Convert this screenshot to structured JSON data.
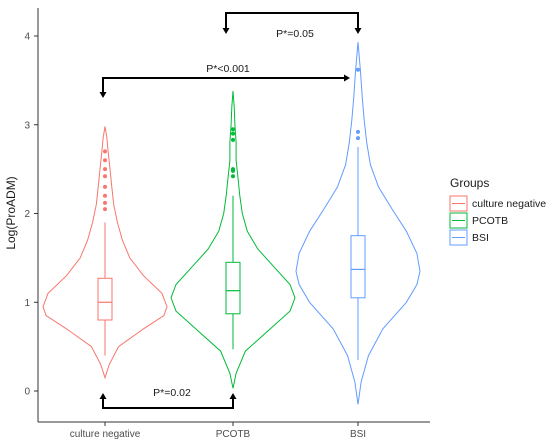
{
  "chart_data": {
    "type": "violin",
    "title": "",
    "xlabel": "",
    "ylabel": "Log(ProADM)",
    "ylim": [
      -0.1,
      4.4
    ],
    "yticks": [
      "0",
      "1",
      "2",
      "3",
      "4"
    ],
    "ytick_values": [
      0,
      1,
      2,
      3,
      4
    ],
    "categories": [
      "culture negative",
      "PCOTB",
      "BSI"
    ],
    "legend": {
      "title": "Groups",
      "position": "right"
    },
    "grid": false,
    "series": [
      {
        "name": "culture negative",
        "color": "#F8766D",
        "violin_min": 0.15,
        "violin_max": 2.98,
        "q1": 0.8,
        "median": 1.0,
        "q3": 1.27,
        "whisker_low": 0.4,
        "whisker_high": 1.9,
        "outliers": [
          2.05,
          2.12,
          2.2,
          2.3,
          2.42,
          2.5,
          2.6,
          2.7
        ],
        "density": [
          [
            0.15,
            0.0
          ],
          [
            0.3,
            0.07
          ],
          [
            0.5,
            0.22
          ],
          [
            0.7,
            0.62
          ],
          [
            0.85,
            0.95
          ],
          [
            0.95,
            1.0
          ],
          [
            1.1,
            0.92
          ],
          [
            1.3,
            0.62
          ],
          [
            1.5,
            0.4
          ],
          [
            1.7,
            0.28
          ],
          [
            1.9,
            0.2
          ],
          [
            2.1,
            0.14
          ],
          [
            2.3,
            0.11
          ],
          [
            2.5,
            0.08
          ],
          [
            2.7,
            0.05
          ],
          [
            2.85,
            0.03
          ],
          [
            2.98,
            0.0
          ]
        ]
      },
      {
        "name": "PCOTB",
        "color": "#00BA38",
        "violin_min": 0.03,
        "violin_max": 3.38,
        "q1": 0.87,
        "median": 1.13,
        "q3": 1.45,
        "whisker_low": 0.47,
        "whisker_high": 2.2,
        "outliers": [
          2.42,
          2.48,
          2.5,
          2.83,
          2.9,
          2.95
        ],
        "density": [
          [
            0.03,
            0.0
          ],
          [
            0.2,
            0.05
          ],
          [
            0.45,
            0.2
          ],
          [
            0.7,
            0.6
          ],
          [
            0.9,
            0.92
          ],
          [
            1.05,
            1.0
          ],
          [
            1.2,
            0.92
          ],
          [
            1.4,
            0.66
          ],
          [
            1.6,
            0.4
          ],
          [
            1.8,
            0.23
          ],
          [
            2.0,
            0.15
          ],
          [
            2.2,
            0.11
          ],
          [
            2.4,
            0.08
          ],
          [
            2.6,
            0.05
          ],
          [
            2.8,
            0.05
          ],
          [
            3.0,
            0.03
          ],
          [
            3.2,
            0.02
          ],
          [
            3.38,
            0.0
          ]
        ]
      },
      {
        "name": "BSI",
        "color": "#619CFF",
        "violin_min": -0.15,
        "violin_max": 3.93,
        "q1": 1.05,
        "median": 1.37,
        "q3": 1.75,
        "whisker_low": 0.35,
        "whisker_high": 2.75,
        "outliers": [
          2.85,
          2.92,
          3.62
        ],
        "density": [
          [
            -0.15,
            0.0
          ],
          [
            0.1,
            0.05
          ],
          [
            0.4,
            0.17
          ],
          [
            0.7,
            0.4
          ],
          [
            1.0,
            0.78
          ],
          [
            1.2,
            0.95
          ],
          [
            1.35,
            1.0
          ],
          [
            1.55,
            0.95
          ],
          [
            1.8,
            0.78
          ],
          [
            2.05,
            0.55
          ],
          [
            2.3,
            0.33
          ],
          [
            2.55,
            0.2
          ],
          [
            2.8,
            0.14
          ],
          [
            3.05,
            0.1
          ],
          [
            3.3,
            0.07
          ],
          [
            3.6,
            0.04
          ],
          [
            3.93,
            0.0
          ]
        ]
      }
    ],
    "annotations": [
      {
        "label": "P*=0.05",
        "from": "PCOTB",
        "to": "BSI",
        "position": "top"
      },
      {
        "label": "P*<0.001",
        "from": "culture negative",
        "to": "BSI",
        "position": "upper"
      },
      {
        "label": "P*=0.02",
        "from": "culture negative",
        "to": "PCOTB",
        "position": "bottom"
      }
    ]
  }
}
